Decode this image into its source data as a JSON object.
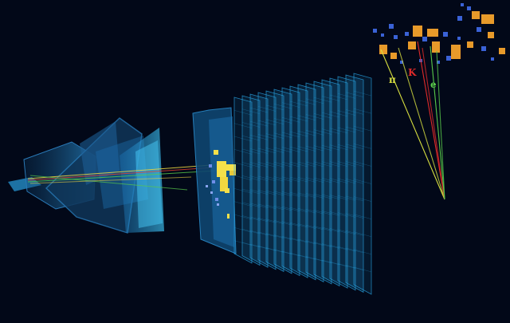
{
  "background": "#020818",
  "colors": {
    "detector": "#2aa8e8",
    "detector_dark": "#0e3a5e",
    "hits_yellow": "#f4e04a",
    "hits_blue": "#3a62d6",
    "hits_orange": "#e89a2a",
    "pion": "#d8e040",
    "kaon": "#e02a2a",
    "electron": "#58c84a"
  },
  "track_labels": {
    "pion": "π",
    "kaon": "K",
    "electron": "e"
  }
}
